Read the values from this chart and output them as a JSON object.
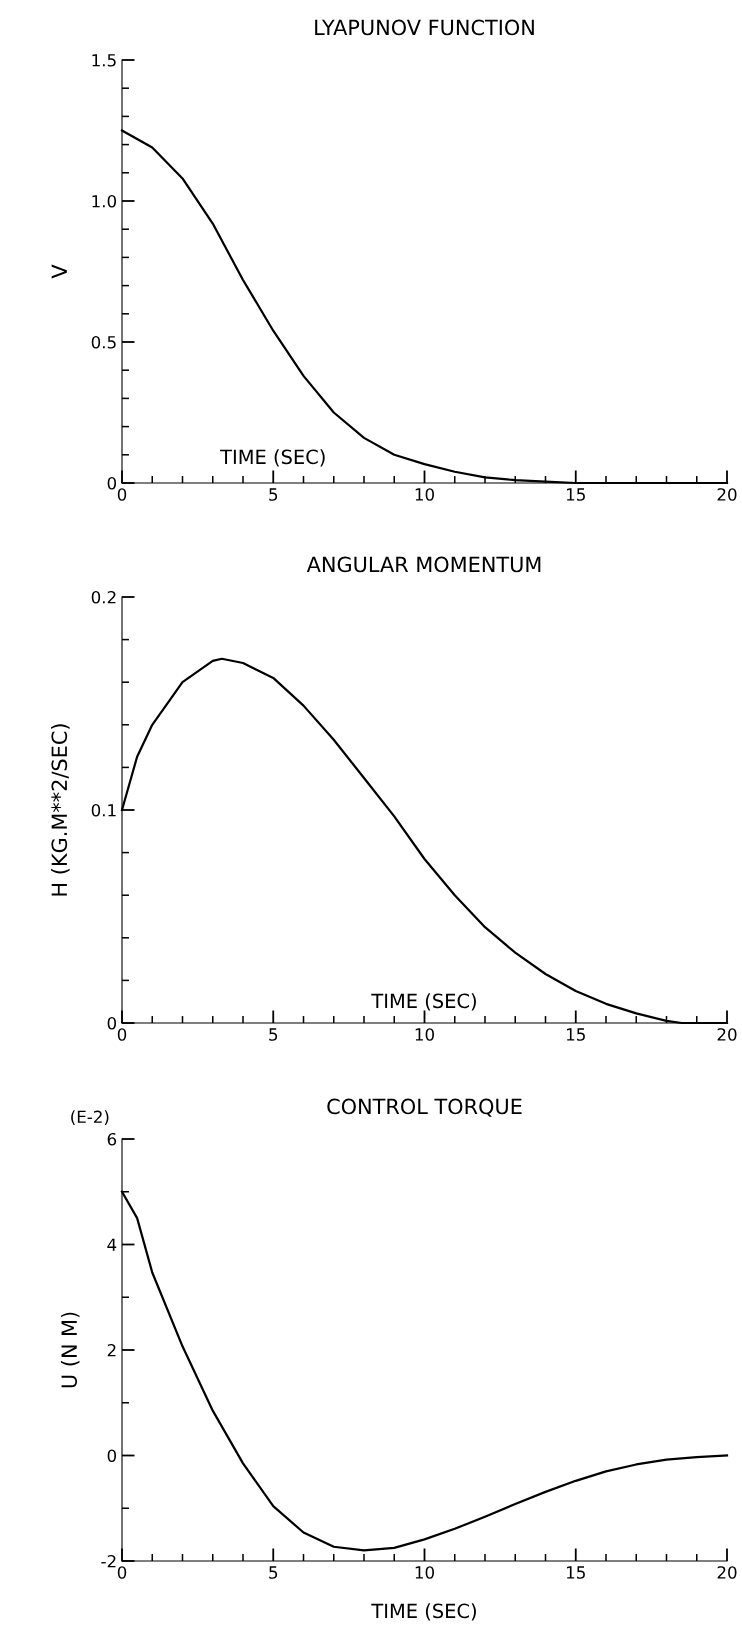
{
  "chart_data": [
    {
      "type": "line",
      "title": "LYAPUNOV FUNCTION",
      "xlabel": "TIME (SEC)",
      "ylabel": "V",
      "x": [
        0,
        1,
        2,
        3,
        4,
        5,
        6,
        7,
        8,
        9,
        10,
        11,
        12,
        13,
        14,
        15,
        16,
        17,
        18,
        19,
        20
      ],
      "series": [
        {
          "color": "#000000",
          "values": [
            1.25,
            1.19,
            1.08,
            0.92,
            0.72,
            0.54,
            0.38,
            0.25,
            0.16,
            0.1,
            0.067,
            0.04,
            0.02,
            0.01,
            0.005,
            0,
            0,
            0,
            0,
            0,
            0
          ]
        }
      ],
      "xlim": [
        0,
        20
      ],
      "ylim": [
        0,
        1.5
      ],
      "xticks": [
        0,
        5,
        10,
        15,
        20,
        {
          "value": 1,
          "label": null
        },
        {
          "value": 2,
          "label": null
        },
        {
          "value": 3,
          "label": null
        },
        {
          "value": 4,
          "label": null
        },
        {
          "value": 6,
          "label": null
        },
        {
          "value": 7,
          "label": null
        },
        {
          "value": 8,
          "label": null
        },
        {
          "value": 9,
          "label": null
        },
        {
          "value": 11,
          "label": null
        },
        {
          "value": 12,
          "label": null
        },
        {
          "value": 13,
          "label": null
        },
        {
          "value": 14,
          "label": null
        },
        {
          "value": 16,
          "label": null
        },
        {
          "value": 17,
          "label": null
        },
        {
          "value": 18,
          "label": null
        },
        {
          "value": 19,
          "label": null
        }
      ],
      "yticks": [
        0,
        0.5,
        {
          "value": 1.0,
          "label": "1.0"
        },
        1.5,
        {
          "value": 0.1,
          "label": null
        },
        {
          "value": 0.2,
          "label": null
        },
        {
          "value": 0.3,
          "label": null
        },
        {
          "value": 0.4,
          "label": null
        },
        {
          "value": 0.6,
          "label": null
        },
        {
          "value": 0.7,
          "label": null
        },
        {
          "value": 0.8,
          "label": null
        },
        {
          "value": 0.9,
          "label": null
        },
        {
          "value": 1.1,
          "label": null
        },
        {
          "value": 1.2,
          "label": null
        },
        {
          "value": 1.3,
          "label": null
        },
        {
          "value": 1.4,
          "label": null
        }
      ],
      "grid": false,
      "legend": false,
      "marker": "none",
      "line_style": "solid"
    },
    {
      "type": "line",
      "title": "ANGULAR MOMENTUM",
      "xlabel": "TIME (SEC)",
      "ylabel": "H (KG.M**2/SEC)",
      "x": [
        0,
        0.5,
        1,
        2,
        3,
        3.3,
        4,
        5,
        6,
        7,
        8,
        9,
        10,
        11,
        12,
        13,
        14,
        15,
        16,
        17,
        18,
        18.5,
        19,
        20
      ],
      "series": [
        {
          "color": "#000000",
          "values": [
            0.1,
            0.125,
            0.14,
            0.16,
            0.17,
            0.171,
            0.169,
            0.162,
            0.149,
            0.133,
            0.115,
            0.097,
            0.077,
            0.06,
            0.045,
            0.033,
            0.023,
            0.015,
            0.009,
            0.0045,
            0.001,
            0,
            0,
            0
          ]
        }
      ],
      "xlim": [
        0,
        20
      ],
      "ylim": [
        0,
        0.2
      ],
      "xticks": [
        0,
        5,
        10,
        15,
        20,
        {
          "value": 1,
          "label": null
        },
        {
          "value": 2,
          "label": null
        },
        {
          "value": 3,
          "label": null
        },
        {
          "value": 4,
          "label": null
        },
        {
          "value": 6,
          "label": null
        },
        {
          "value": 7,
          "label": null
        },
        {
          "value": 8,
          "label": null
        },
        {
          "value": 9,
          "label": null
        },
        {
          "value": 11,
          "label": null
        },
        {
          "value": 12,
          "label": null
        },
        {
          "value": 13,
          "label": null
        },
        {
          "value": 14,
          "label": null
        },
        {
          "value": 16,
          "label": null
        },
        {
          "value": 17,
          "label": null
        },
        {
          "value": 18,
          "label": null
        },
        {
          "value": 19,
          "label": null
        }
      ],
      "yticks": [
        0,
        0.1,
        0.2,
        {
          "value": 0.02,
          "label": null
        },
        {
          "value": 0.04,
          "label": null
        },
        {
          "value": 0.06,
          "label": null
        },
        {
          "value": 0.08,
          "label": null
        },
        {
          "value": 0.12,
          "label": null
        },
        {
          "value": 0.14,
          "label": null
        },
        {
          "value": 0.16,
          "label": null
        },
        {
          "value": 0.18,
          "label": null
        }
      ],
      "grid": false,
      "legend": false,
      "marker": "none",
      "line_style": "solid"
    },
    {
      "type": "line",
      "title": "CONTROL TORQUE",
      "xlabel": "TIME (SEC)",
      "ylabel": "U (N M)",
      "annotations": [
        "(E-2)"
      ],
      "x": [
        0,
        0.5,
        1,
        2,
        3,
        4,
        5,
        6,
        7,
        8,
        9,
        10,
        11,
        12,
        13,
        14,
        15,
        16,
        17,
        18,
        19,
        20
      ],
      "series": [
        {
          "color": "#000000",
          "values": [
            5.0,
            4.5,
            3.47,
            2.07,
            0.85,
            -0.15,
            -0.96,
            -1.46,
            -1.73,
            -1.8,
            -1.75,
            -1.59,
            -1.39,
            -1.16,
            -0.92,
            -0.69,
            -0.48,
            -0.3,
            -0.17,
            -0.08,
            -0.03,
            0.0
          ]
        }
      ],
      "xlim": [
        0,
        20
      ],
      "ylim": [
        -2,
        6
      ],
      "xticks": [
        0,
        5,
        10,
        15,
        20,
        {
          "value": 1,
          "label": null
        },
        {
          "value": 2,
          "label": null
        },
        {
          "value": 3,
          "label": null
        },
        {
          "value": 4,
          "label": null
        },
        {
          "value": 6,
          "label": null
        },
        {
          "value": 7,
          "label": null
        },
        {
          "value": 8,
          "label": null
        },
        {
          "value": 9,
          "label": null
        },
        {
          "value": 11,
          "label": null
        },
        {
          "value": 12,
          "label": null
        },
        {
          "value": 13,
          "label": null
        },
        {
          "value": 14,
          "label": null
        },
        {
          "value": 16,
          "label": null
        },
        {
          "value": 17,
          "label": null
        },
        {
          "value": 18,
          "label": null
        },
        {
          "value": 19,
          "label": null
        }
      ],
      "yticks": [
        -2,
        0,
        2,
        4,
        6,
        {
          "value": -1,
          "label": null
        },
        {
          "value": 1,
          "label": null
        },
        {
          "value": 3,
          "label": null
        },
        {
          "value": 5,
          "label": null
        }
      ],
      "grid": false,
      "legend": false,
      "marker": "none",
      "line_style": "solid"
    }
  ]
}
